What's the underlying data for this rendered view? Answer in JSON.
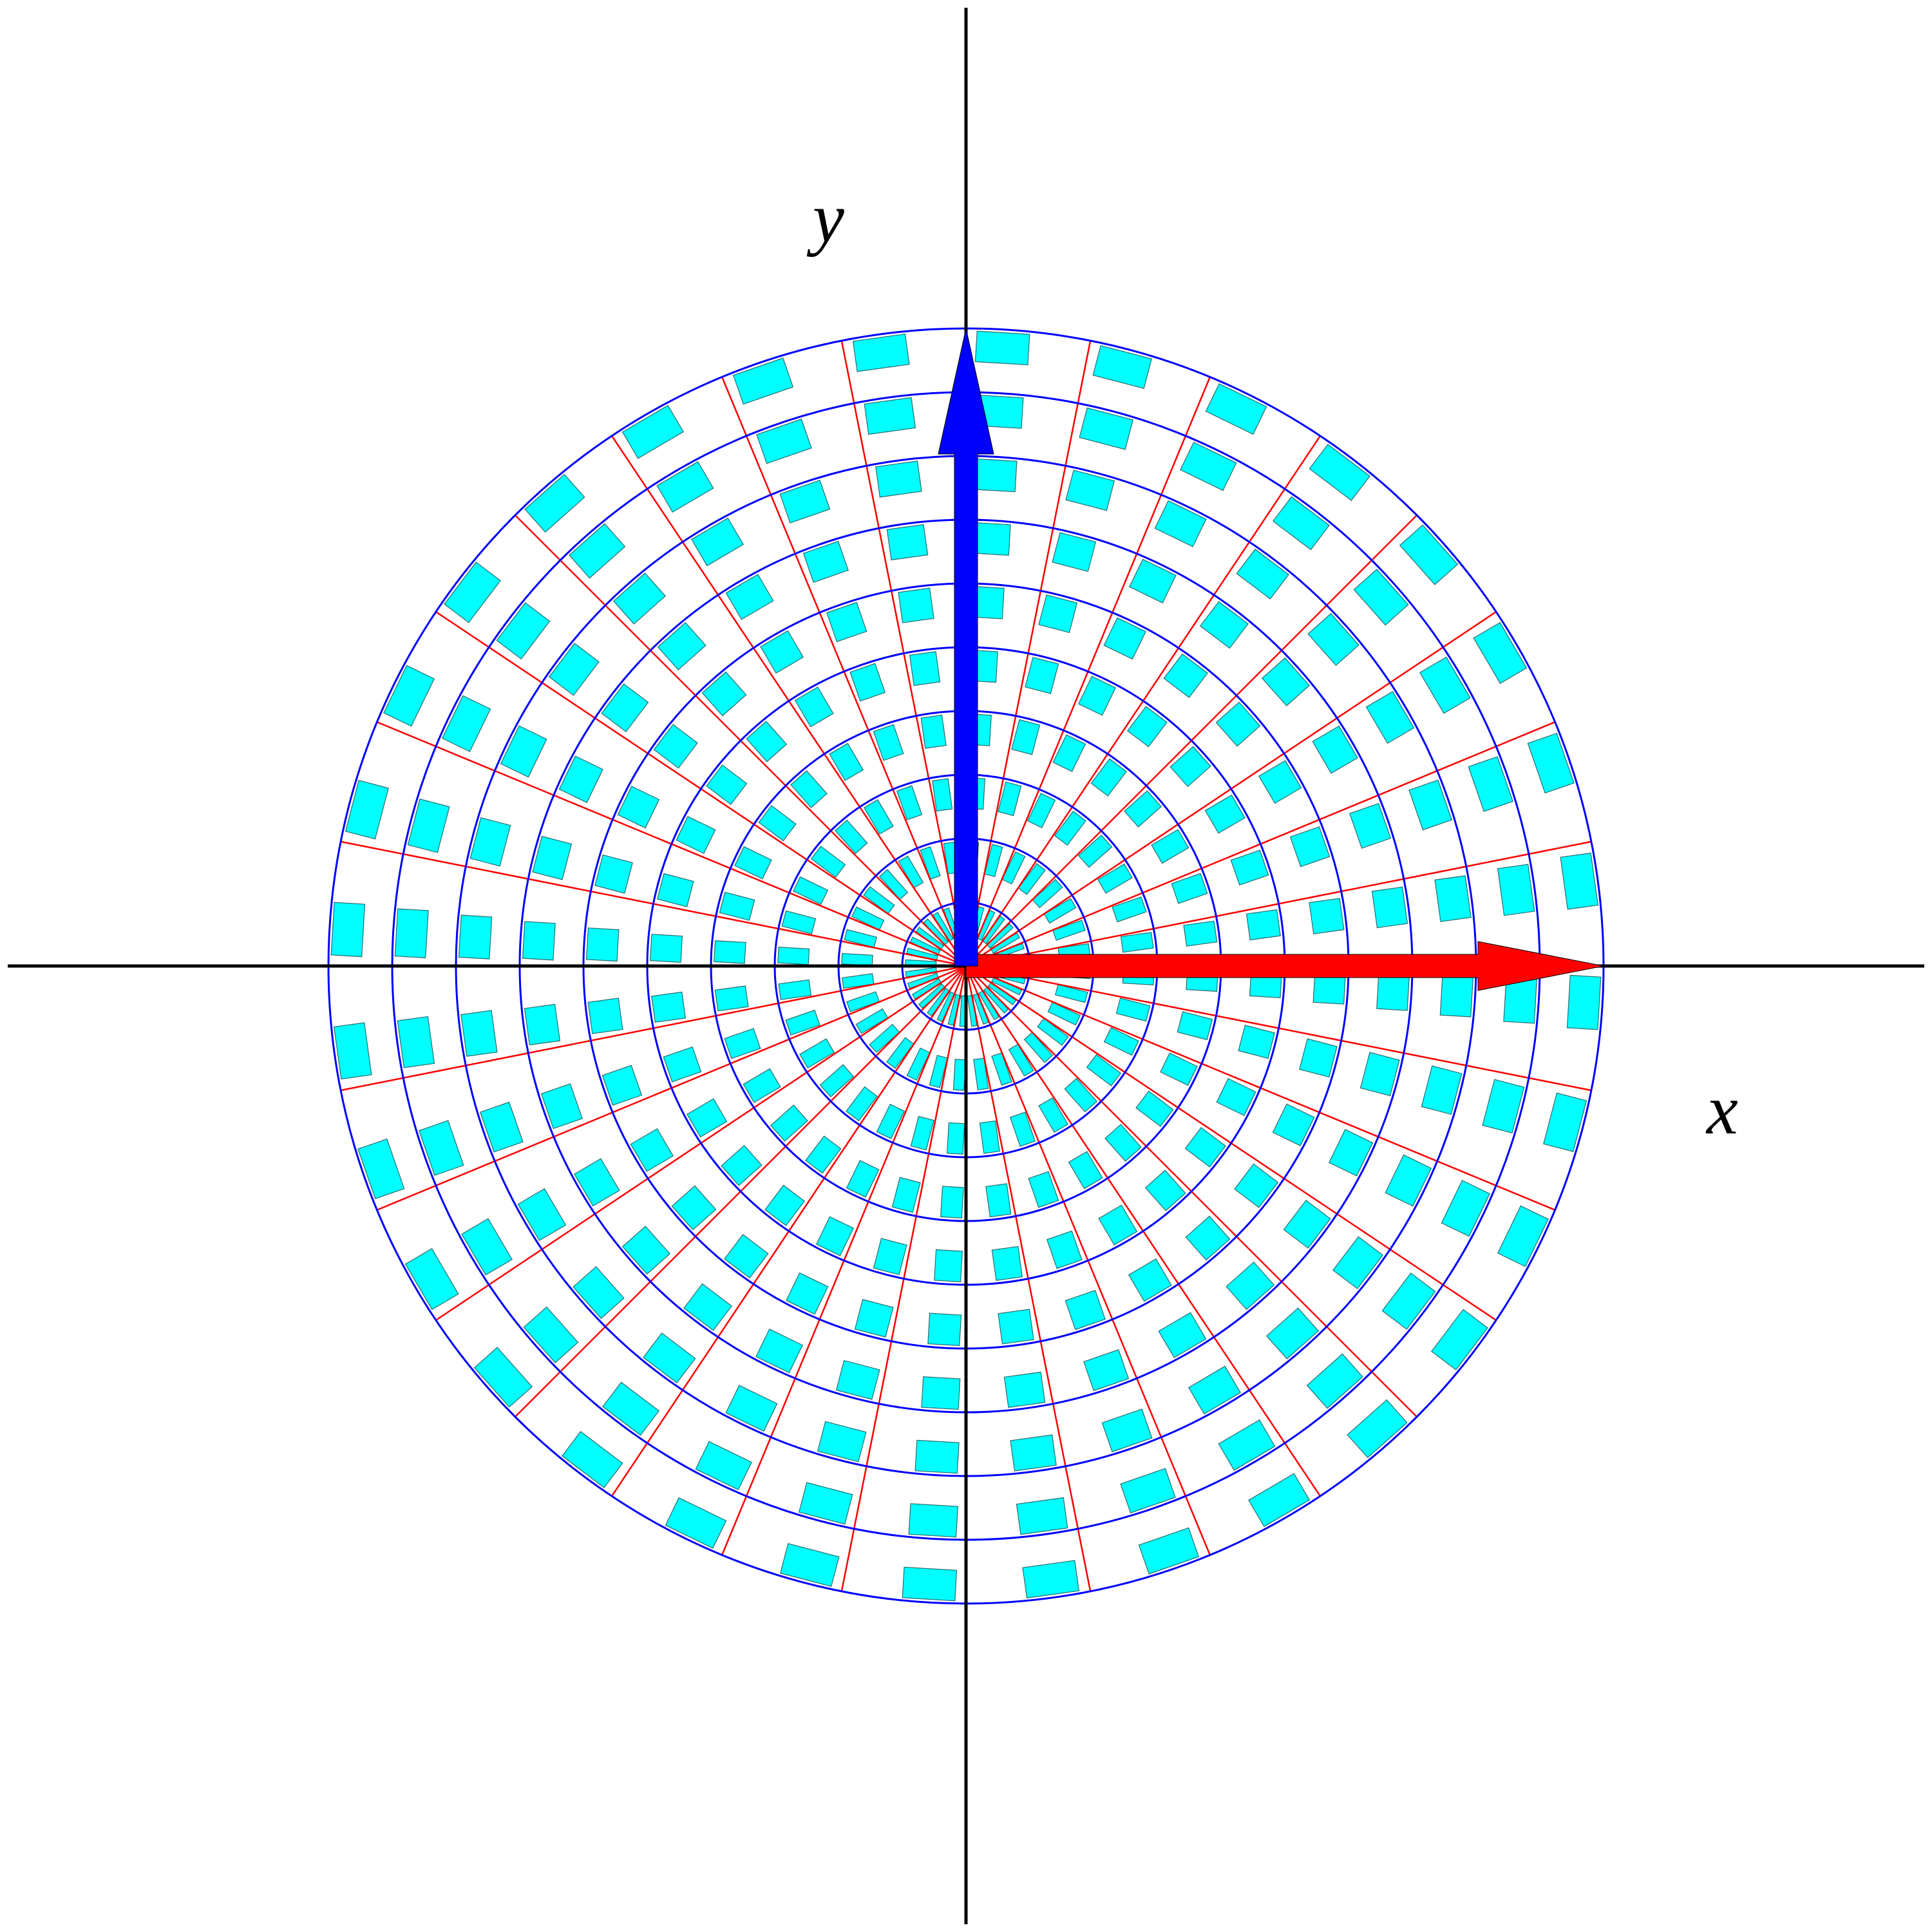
{
  "figure": {
    "description_free": true,
    "x_axis_label": "x",
    "y_axis_label": "y"
  },
  "grid": {
    "ring_count": 10,
    "spoke_count": 32,
    "ring_color": "#0000ff",
    "spoke_color": "#ff0000",
    "axis_color": "#000000"
  },
  "cells": {
    "fill_color": "#00ffff",
    "stroke_color": "#2a6b6b"
  },
  "vectors": {
    "x_vector": {
      "color": "#ff0000",
      "direction": "x"
    },
    "y_vector": {
      "color": "#0000ff",
      "direction": "y"
    }
  }
}
